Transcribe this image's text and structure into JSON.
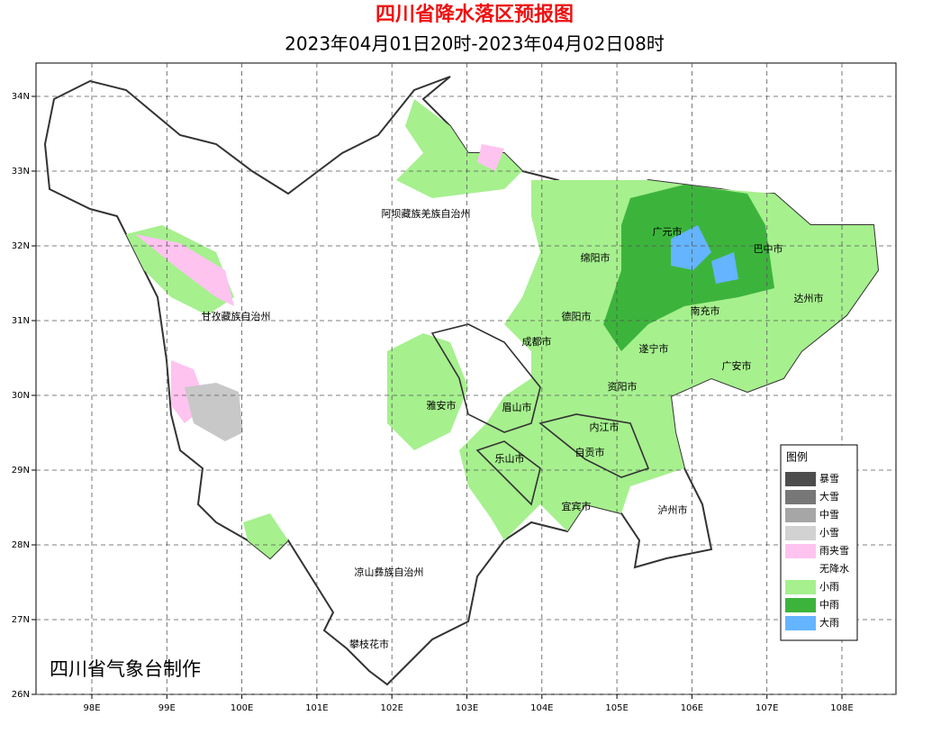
{
  "header": {
    "title": "四川省降水落区预报图",
    "subtitle": "2023年04月01日20时-2023年04月02日08时"
  },
  "axes": {
    "x_ticks": [
      "98E",
      "99E",
      "100E",
      "101E",
      "102E",
      "103E",
      "104E",
      "105E",
      "106E",
      "107E",
      "108E"
    ],
    "y_ticks": [
      "34N",
      "33N",
      "32N",
      "31N",
      "30N",
      "29N",
      "28N",
      "27N",
      "26N"
    ]
  },
  "cities": [
    "阿坝藏族羌族自治州",
    "甘孜藏族自治州",
    "凉山彝族自治州",
    "攀枝花市",
    "广元市",
    "巴中市",
    "绵阳市",
    "达州市",
    "德阳市",
    "南充市",
    "成都市",
    "遂宁市",
    "广安市",
    "资阳市",
    "雅安市",
    "眉山市",
    "内江市",
    "自贡市",
    "乐山市",
    "宜宾市",
    "泸州市"
  ],
  "legend": {
    "title": "图例",
    "items": [
      {
        "label": "暴雪",
        "color": "#4d4d4d"
      },
      {
        "label": "大雪",
        "color": "#777777"
      },
      {
        "label": "中雪",
        "color": "#a6a6a6"
      },
      {
        "label": "小雪",
        "color": "#d2d2d2"
      },
      {
        "label": "雨夹雪",
        "color": "#ffc3f0"
      },
      {
        "label": "无降水",
        "color": "#ffffff"
      },
      {
        "label": "小雨",
        "color": "#a6f08e"
      },
      {
        "label": "中雨",
        "color": "#3cb43c"
      },
      {
        "label": "大雨",
        "color": "#64b4ff"
      }
    ]
  },
  "credit": "四川省气象台制作"
}
